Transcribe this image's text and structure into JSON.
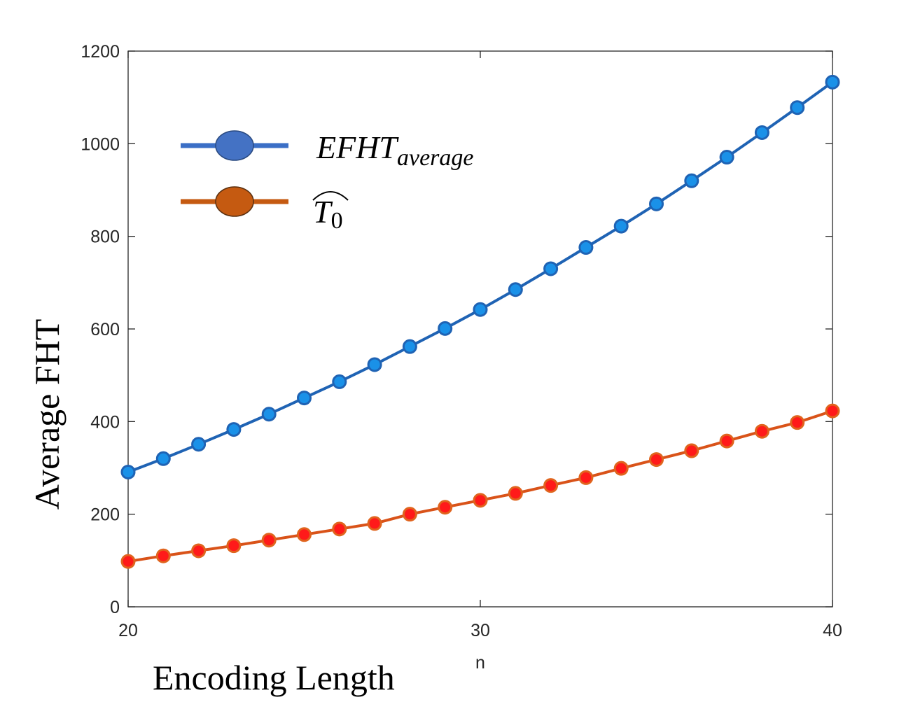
{
  "chart_data": {
    "type": "line",
    "xlabel": "n",
    "ylabel": "Average FHT",
    "annotation_xlabel": "Encoding Length",
    "xlim": [
      20,
      40
    ],
    "ylim": [
      0,
      1200
    ],
    "x_ticks": [
      "20",
      "30",
      "40"
    ],
    "y_ticks": [
      "0",
      "200",
      "400",
      "600",
      "800",
      "1000",
      "1200"
    ],
    "grid": false,
    "legend_placement": "top-left",
    "x": [
      20,
      21,
      22,
      23,
      24,
      25,
      26,
      27,
      28,
      29,
      30,
      31,
      32,
      33,
      34,
      35,
      36,
      37,
      38,
      39,
      40
    ],
    "series": [
      {
        "name": "EFHT",
        "name_subscript": "average",
        "line_color": "#1f63b4",
        "marker_color": "#1a91e8",
        "marker_edge": "#1f63b4",
        "legend_line_color": "#3b6fc6",
        "legend_marker_color": "#4472c4",
        "values": [
          291,
          320,
          351,
          383,
          416,
          451,
          486,
          523,
          562,
          601,
          642,
          685,
          730,
          776,
          822,
          870,
          920,
          971,
          1024,
          1078,
          1133
        ]
      },
      {
        "name": "T",
        "name_subscript": "0",
        "name_hat": true,
        "line_color": "#d95319",
        "marker_color": "#ff1a1a",
        "marker_edge": "#e0641e",
        "legend_line_color": "#c55a11",
        "legend_marker_color": "#c55a11",
        "values": [
          98,
          110,
          121,
          132,
          144,
          156,
          168,
          180,
          200,
          215,
          230,
          245,
          262,
          279,
          299,
          318,
          337,
          358,
          379,
          398,
          423
        ]
      }
    ]
  }
}
